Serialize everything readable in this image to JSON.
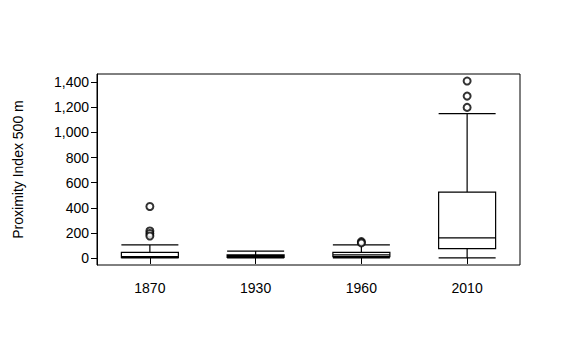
{
  "chart_data": {
    "type": "boxplot",
    "y_label": "Proximity Index 500 m",
    "categories": [
      "1870",
      "1930",
      "1960",
      "2010"
    ],
    "values": [
      [
        0,
        2,
        10,
        45,
        105
      ],
      [
        0,
        5,
        15,
        25,
        55
      ],
      [
        0,
        10,
        25,
        45,
        105
      ],
      [
        0,
        75,
        160,
        525,
        1150
      ]
    ],
    "outliers": [
      [
        410,
        215,
        195,
        175
      ],
      [],
      [
        130,
        120
      ],
      [
        1200,
        1290,
        1410
      ]
    ],
    "color": "#000000",
    "marker": "circle",
    "ylim": [
      -56,
      1466
    ],
    "yticks": [
      0,
      200,
      400,
      600,
      800,
      1000,
      1200,
      1400
    ],
    "grid": false
  }
}
